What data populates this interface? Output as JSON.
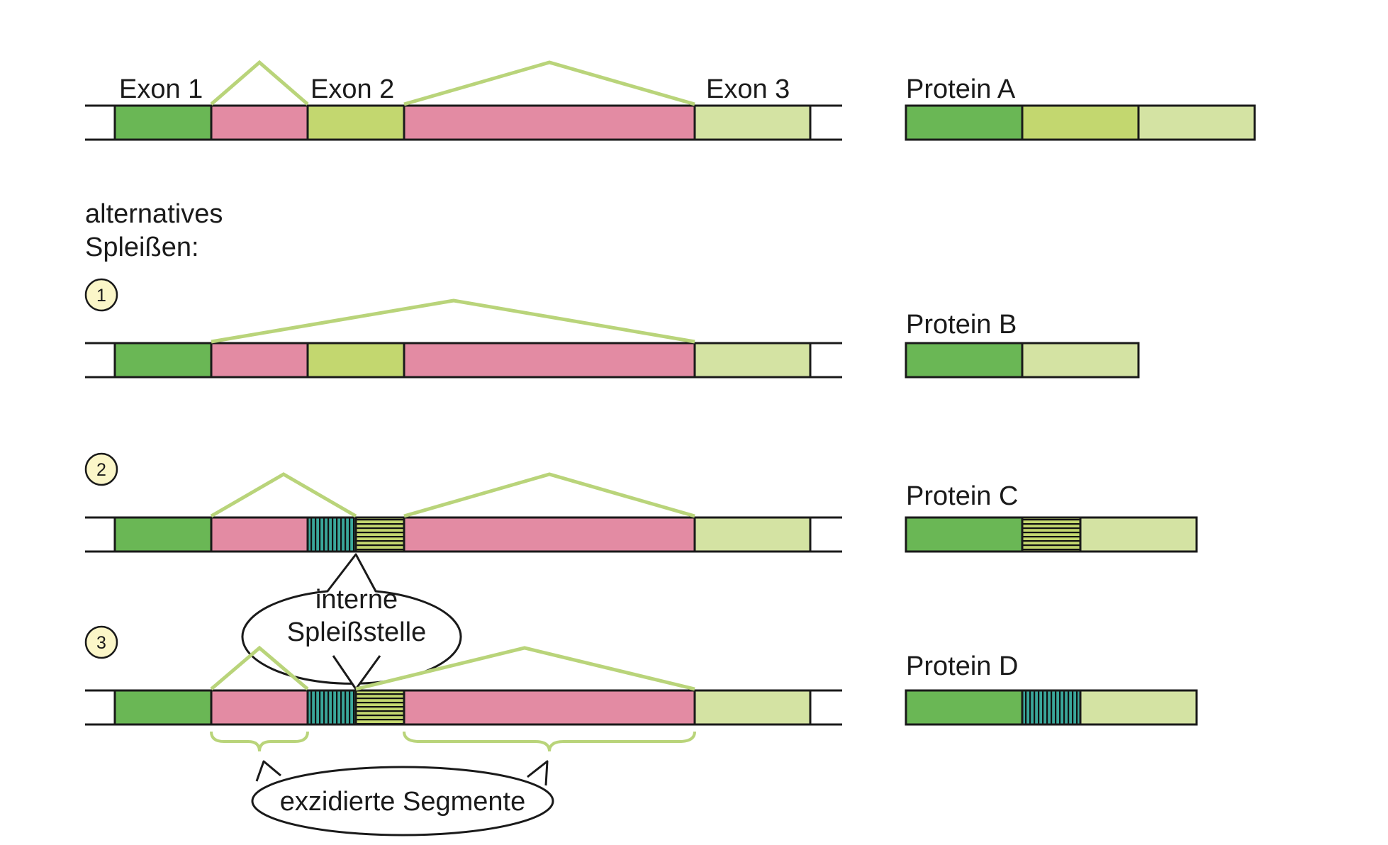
{
  "labels": {
    "exon1": "Exon 1",
    "exon2": "Exon 2",
    "exon3": "Exon 3",
    "alt_line1": "alternatives",
    "alt_line2": "Spleißen:",
    "variant1": "1",
    "variant2": "2",
    "variant3": "3",
    "internal_site_line1": "interne",
    "internal_site_line2": "Spleißstelle",
    "excised": "exzidierte Segmente"
  },
  "proteins": {
    "a": "Protein A",
    "b": "Protein B",
    "c": "Protein C",
    "d": "Protein D"
  },
  "colors": {
    "exon1": "#6ab755",
    "exon2": "#c3d76f",
    "exon3": "#d4e3a3",
    "intron": "#e38ba3",
    "internal_segment": "#3aa79a",
    "splice_line": "#b9d47a",
    "numbered_circle": "#fbf6c8"
  }
}
